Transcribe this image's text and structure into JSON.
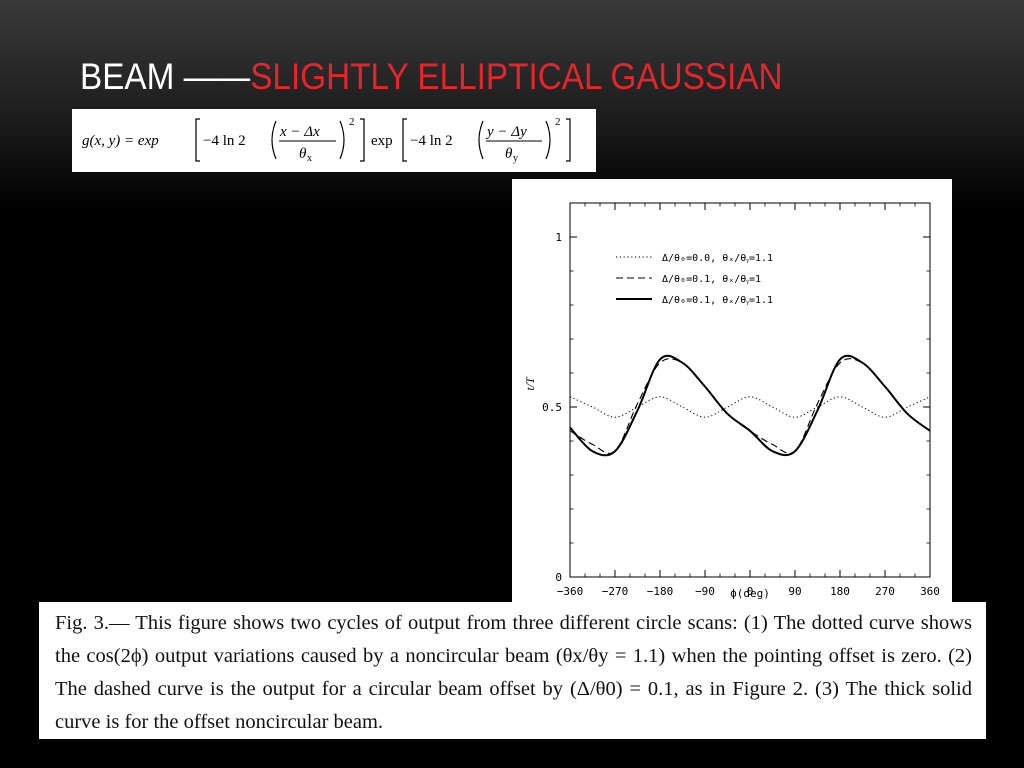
{
  "slide": {
    "title_part1": "BEAM ——",
    "title_part2": "SLIGHTLY ELLIPTICAL GAUSSIAN",
    "title_colors": {
      "part1": "#ffffff",
      "part2": "#e3262b"
    }
  },
  "equation": {
    "lhs": "g(x, y) = exp",
    "factor1": "−4 ln 2",
    "num1": "x − Δx",
    "den1": "θ",
    "den1_sub": "x",
    "mid": "exp",
    "factor2": "−4 ln 2",
    "num2": "y − Δy",
    "den2": "θ",
    "den2_sub": "y",
    "power": "2"
  },
  "chart_data": {
    "type": "line",
    "xlabel": "ϕ(deg)",
    "ylabel": "t/T",
    "xlim": [
      -360,
      360
    ],
    "ylim": [
      0,
      1.1
    ],
    "xticks": [
      -360,
      -270,
      -180,
      -90,
      0,
      90,
      180,
      270,
      360
    ],
    "xtick_labels": [
      "−360",
      "−270",
      "−180",
      "−90",
      "0",
      "90",
      "180",
      "270",
      "360"
    ],
    "yticks": [
      0,
      0.5,
      1
    ],
    "ytick_labels": [
      "0",
      "0.5",
      "1"
    ],
    "legend_position": "top-center",
    "series": [
      {
        "name": "Δ/θ₀=0.0, θₓ/θᵧ=1.1",
        "style": "dotted",
        "x": [
          -360,
          -315,
          -270,
          -225,
          -180,
          -135,
          -90,
          -45,
          0,
          45,
          90,
          135,
          180,
          225,
          270,
          315,
          360
        ],
        "y": [
          0.53,
          0.5,
          0.47,
          0.5,
          0.53,
          0.5,
          0.47,
          0.5,
          0.53,
          0.5,
          0.47,
          0.5,
          0.53,
          0.5,
          0.47,
          0.5,
          0.53
        ]
      },
      {
        "name": "Δ/θ₀=0.1, θₓ/θᵧ=1",
        "style": "dashed",
        "x": [
          -360,
          -315,
          -270,
          -225,
          -180,
          -135,
          -90,
          -45,
          0,
          45,
          90,
          135,
          180,
          225,
          270,
          315,
          360
        ],
        "y": [
          0.43,
          0.39,
          0.37,
          0.51,
          0.63,
          0.63,
          0.56,
          0.48,
          0.43,
          0.39,
          0.37,
          0.51,
          0.63,
          0.63,
          0.56,
          0.48,
          0.43
        ]
      },
      {
        "name": "Δ/θ₀=0.1, θₓ/θᵧ=1.1",
        "style": "solid-thick",
        "x": [
          -360,
          -315,
          -270,
          -225,
          -180,
          -135,
          -90,
          -45,
          0,
          45,
          90,
          135,
          180,
          225,
          270,
          315,
          360
        ],
        "y": [
          0.44,
          0.37,
          0.37,
          0.49,
          0.64,
          0.63,
          0.56,
          0.48,
          0.43,
          0.37,
          0.37,
          0.49,
          0.64,
          0.63,
          0.56,
          0.48,
          0.43
        ]
      }
    ]
  },
  "caption": {
    "text": "Fig. 3.— This figure shows two cycles of output from three different circle scans: (1) The dotted curve shows the cos(2ϕ) output variations caused by a noncircular beam (θx/θy = 1.1) when the pointing offset is zero. (2) The dashed curve is the output for a circular beam offset by (Δ/θ0) = 0.1, as in Figure 2. (3) The thick solid curve is for the offset noncircular beam."
  }
}
